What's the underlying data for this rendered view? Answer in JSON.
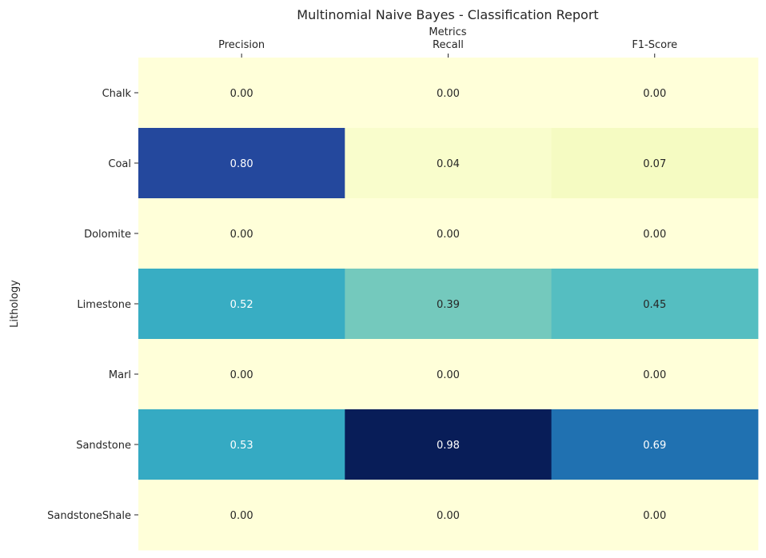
{
  "chart_data": {
    "type": "heatmap",
    "title": "Multinomial Naive Bayes - Classification Report",
    "xlabel": "Metrics",
    "ylabel": "Lithology",
    "x_axis_position": "top",
    "columns": [
      "Precision",
      "Recall",
      "F1-Score"
    ],
    "rows": [
      "Chalk",
      "Coal",
      "Dolomite",
      "Limestone",
      "Marl",
      "Sandstone",
      "SandstoneShale"
    ],
    "values": [
      [
        0.0,
        0.0,
        0.0
      ],
      [
        0.8,
        0.04,
        0.07
      ],
      [
        0.0,
        0.0,
        0.0
      ],
      [
        0.52,
        0.39,
        0.45
      ],
      [
        0.0,
        0.0,
        0.0
      ],
      [
        0.53,
        0.98,
        0.69
      ],
      [
        0.0,
        0.0,
        0.0
      ]
    ],
    "value_format": "0.00",
    "colormap": "YlGnBu",
    "vmin": 0.0,
    "vmax": 0.98,
    "colorbar": false,
    "grid": false
  }
}
